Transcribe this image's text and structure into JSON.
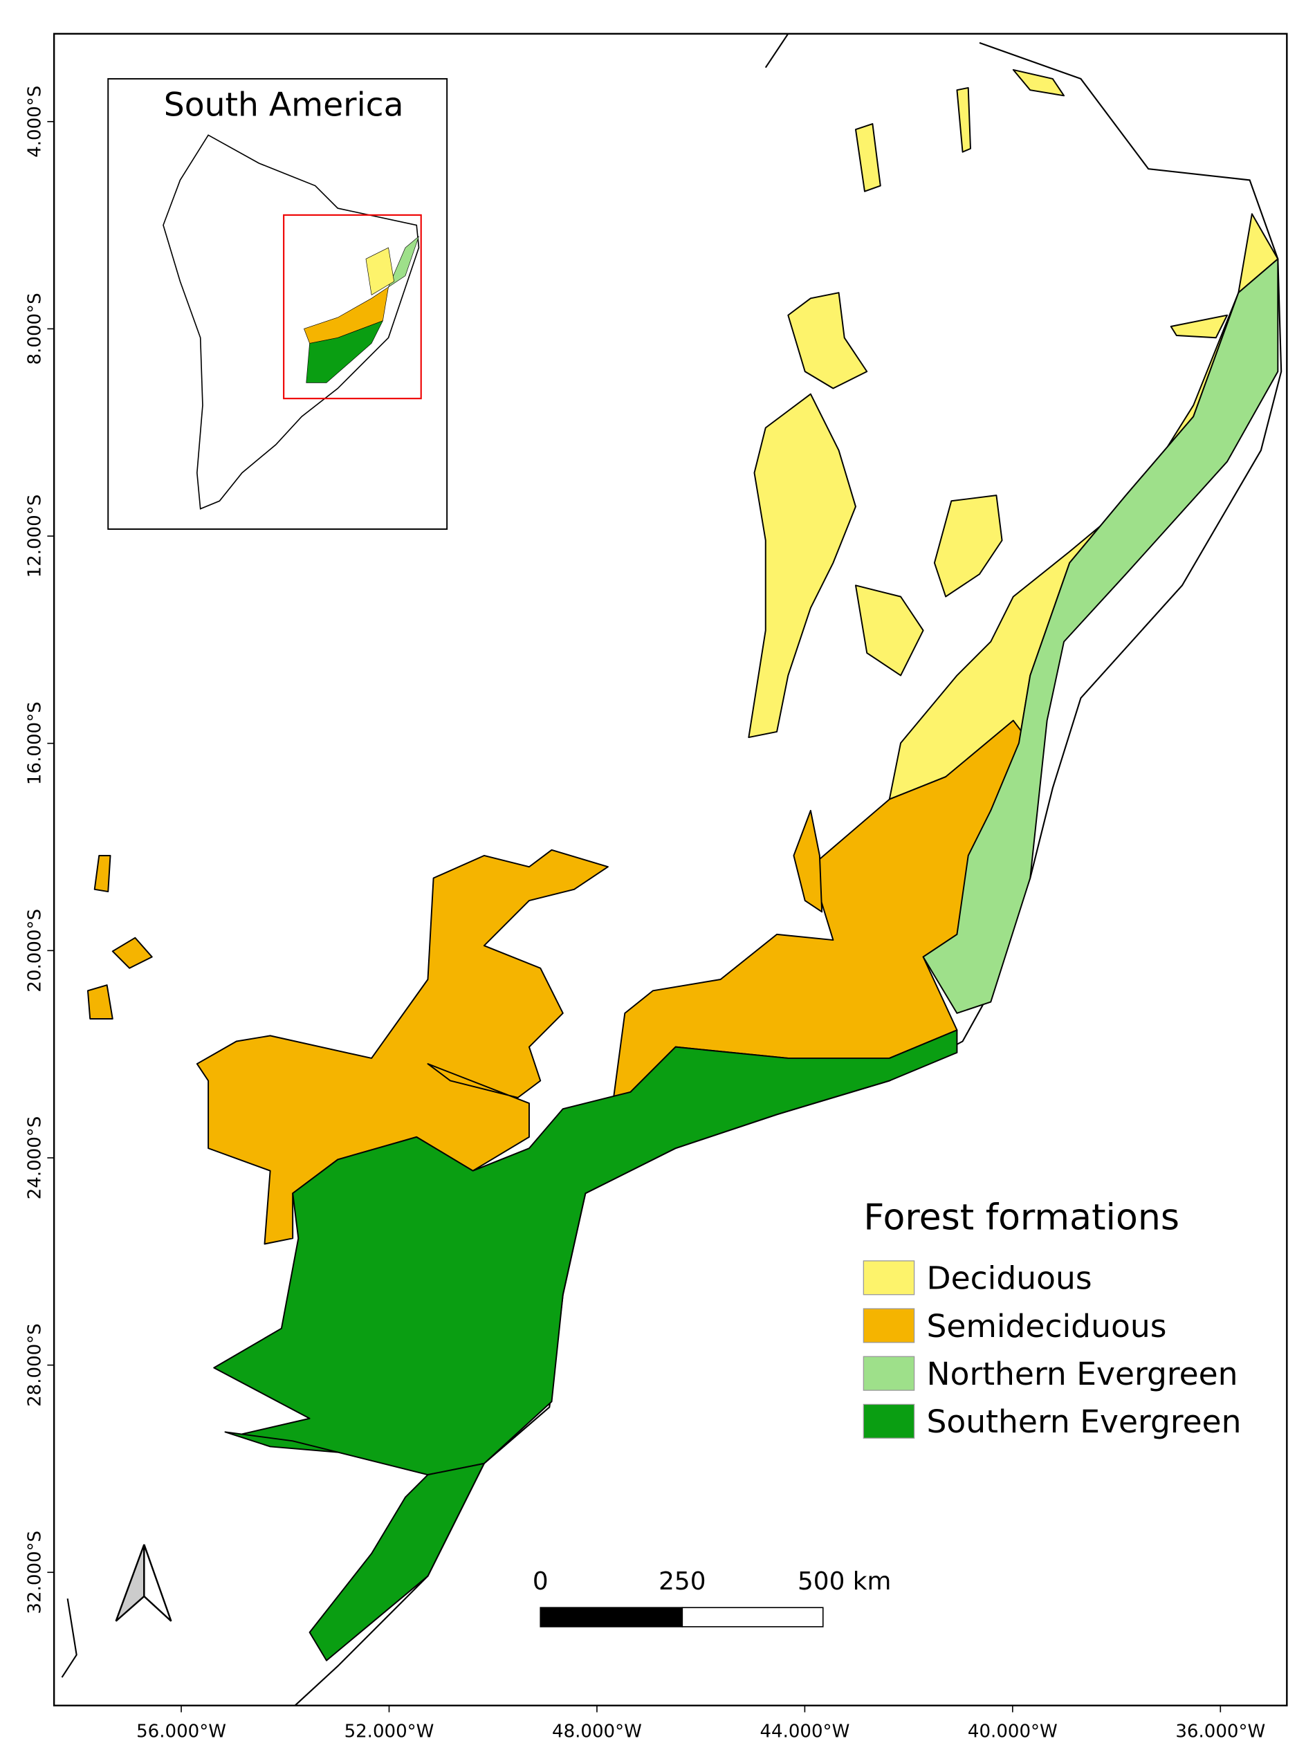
{
  "inset": {
    "title": "South America"
  },
  "legend": {
    "title": "Forest formations",
    "items": [
      {
        "label": "Deciduous",
        "color": "#fdf36b"
      },
      {
        "label": "Semideciduous",
        "color": "#f5b400"
      },
      {
        "label": "Northern Evergreen",
        "color": "#9ee08a"
      },
      {
        "label": "Southern Evergreen",
        "color": "#0a9e12"
      }
    ]
  },
  "scale_bar": {
    "labels": [
      "0",
      "250",
      "500 km"
    ]
  },
  "axes": {
    "latitude_labels": [
      "4.000°S",
      "8.000°S",
      "12.000°S",
      "16.000°S",
      "20.000°S",
      "24.000°S",
      "28.000°S",
      "32.000°S"
    ],
    "longitude_labels": [
      "56.000°W",
      "52.000°W",
      "48.000°W",
      "44.000°W",
      "40.000°W",
      "36.000°W"
    ]
  }
}
